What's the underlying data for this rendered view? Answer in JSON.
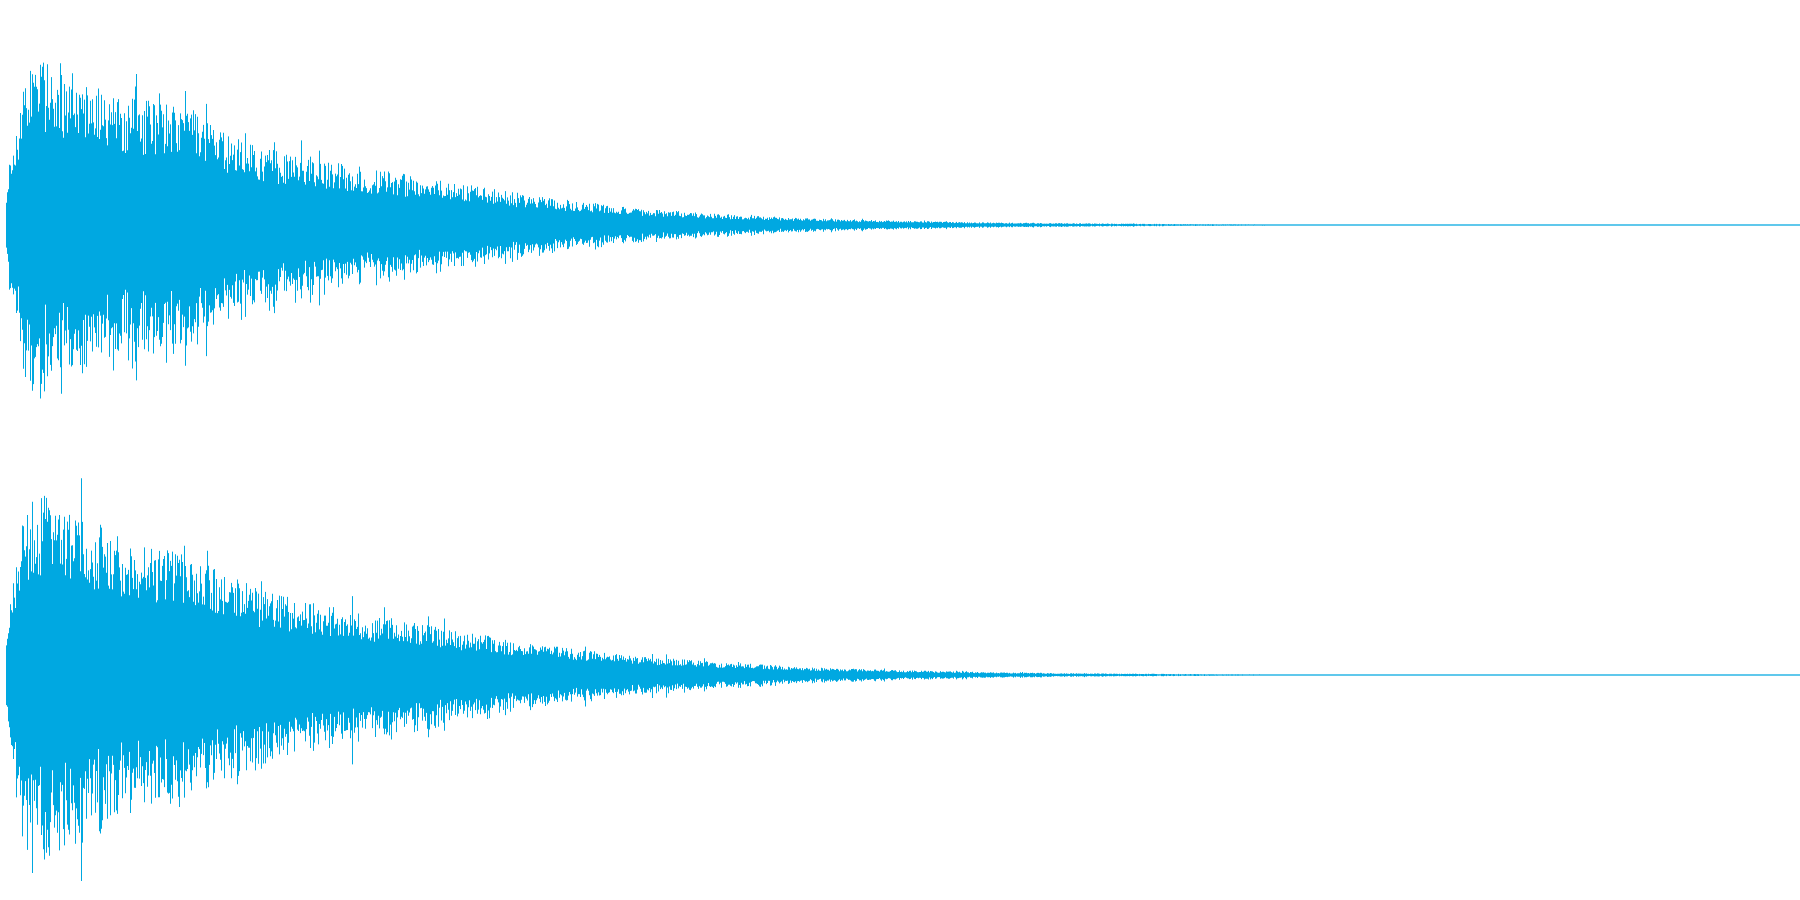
{
  "colors": {
    "background": "#ffffff",
    "waveform": "#00a8e1"
  },
  "chart_data": {
    "type": "area",
    "title": "",
    "xlabel": "",
    "ylabel": "",
    "grid": false,
    "legend": "none",
    "ylim": [
      -1,
      1
    ],
    "series": [
      {
        "channel": 1,
        "envelope_x": [
          0,
          0.01,
          0.02,
          0.04,
          0.07,
          0.1,
          0.12,
          0.15,
          0.2,
          0.25,
          0.3,
          0.35,
          0.4,
          0.45,
          0.5,
          0.55,
          0.6,
          0.65,
          0.7,
          0.75,
          0.8,
          1.0
        ],
        "envelope_y": [
          0.15,
          0.75,
          0.8,
          0.7,
          0.6,
          0.55,
          0.45,
          0.35,
          0.27,
          0.2,
          0.13,
          0.08,
          0.05,
          0.03,
          0.02,
          0.012,
          0.008,
          0.005,
          0.003,
          0.001,
          0.0005,
          0.0003
        ]
      },
      {
        "channel": 2,
        "envelope_x": [
          0,
          0.01,
          0.02,
          0.04,
          0.07,
          0.1,
          0.12,
          0.15,
          0.2,
          0.25,
          0.3,
          0.35,
          0.4,
          0.45,
          0.5,
          0.55,
          0.6,
          0.65,
          0.7,
          0.75,
          0.8,
          1.0
        ],
        "envelope_y": [
          0.2,
          0.8,
          0.85,
          0.75,
          0.65,
          0.57,
          0.48,
          0.38,
          0.29,
          0.21,
          0.14,
          0.09,
          0.06,
          0.035,
          0.022,
          0.013,
          0.008,
          0.005,
          0.003,
          0.0015,
          0.0005,
          0.0003
        ]
      }
    ]
  }
}
